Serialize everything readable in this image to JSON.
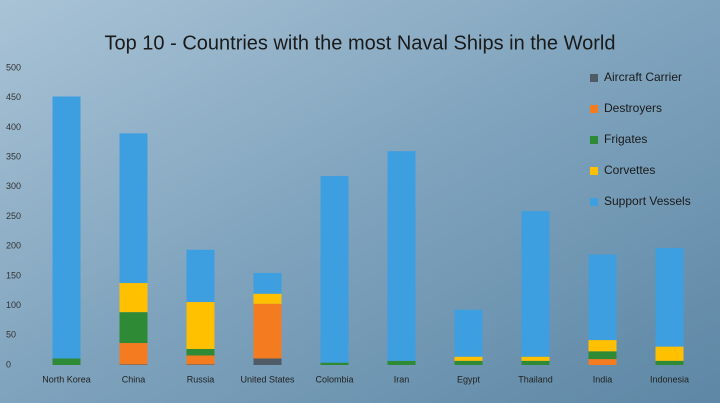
{
  "chart_data": {
    "type": "stacked_bar",
    "title": "Top 10 - Countries with the most Naval Ships in the World",
    "categories": [
      "North Korea",
      "China",
      "Russia",
      "United States",
      "Colombia",
      "Iran",
      "Egypt",
      "Thailand",
      "India",
      "Indonesia"
    ],
    "series": [
      {
        "name": "Aircraft Carrier",
        "color": "#4f5b66",
        "values": [
          0,
          1,
          1,
          11,
          0,
          0,
          0,
          0,
          0,
          0
        ]
      },
      {
        "name": "Destroyers",
        "color": "#f47b20",
        "values": [
          0,
          36,
          15,
          92,
          0,
          0,
          0,
          0,
          10,
          0
        ]
      },
      {
        "name": "Frigates",
        "color": "#2f8a36",
        "values": [
          11,
          52,
          11,
          0,
          4,
          7,
          7,
          7,
          13,
          7
        ]
      },
      {
        "name": "Corvettes",
        "color": "#ffc000",
        "values": [
          0,
          49,
          79,
          17,
          0,
          0,
          7,
          7,
          19,
          24
        ]
      },
      {
        "name": "Support Vessels",
        "color": "#3d9ee0",
        "values": [
          441,
          252,
          88,
          35,
          314,
          353,
          79,
          245,
          144,
          166
        ]
      }
    ],
    "ylim": [
      0,
      500
    ],
    "yticks": [
      0,
      50,
      100,
      150,
      200,
      250,
      300,
      350,
      400,
      450,
      500
    ],
    "legend": "top-right"
  }
}
